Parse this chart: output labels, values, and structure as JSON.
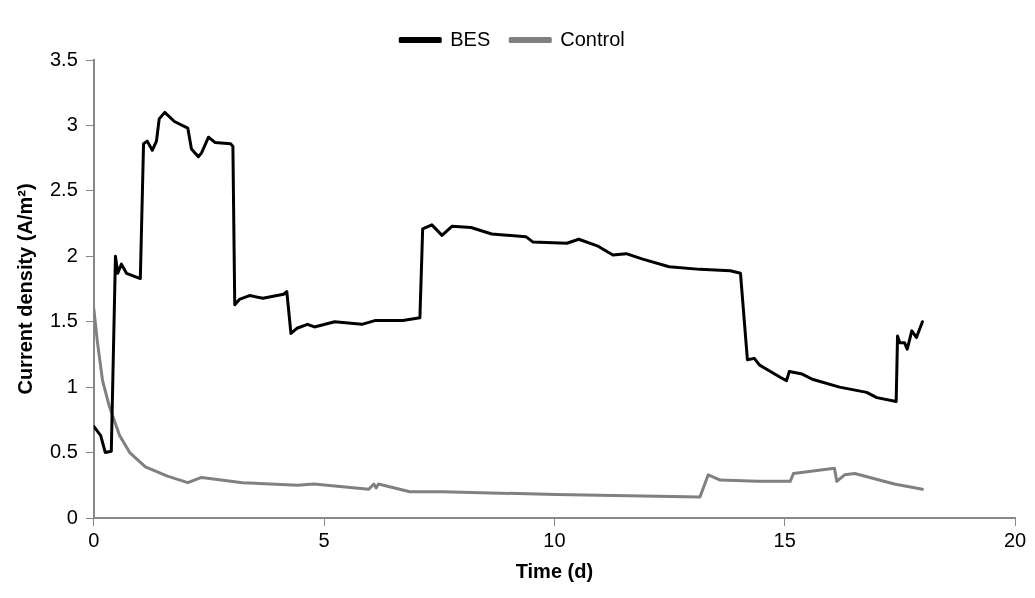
{
  "chart_data": {
    "type": "line",
    "xlabel": "Time (d)",
    "ylabel": "Current density (A/m²)",
    "xlim": [
      0,
      20
    ],
    "xticks": [
      0,
      5,
      10,
      15,
      20
    ],
    "ylim": [
      0,
      3.5
    ],
    "yticks": [
      0,
      0.5,
      1,
      1.5,
      2,
      2.5,
      3,
      3.5
    ],
    "grid": false,
    "legend": "top",
    "marker": "none",
    "line_style": "solid",
    "series": [
      {
        "name": "BES",
        "color": "#000000",
        "x": [
          0,
          0.15,
          0.25,
          0.38,
          0.47,
          0.52,
          0.6,
          0.71,
          1.01,
          1.08,
          1.16,
          1.27,
          1.36,
          1.42,
          1.54,
          1.75,
          2.04,
          2.12,
          2.27,
          2.34,
          2.49,
          2.63,
          2.97,
          3.02,
          3.06,
          3.16,
          3.38,
          3.67,
          4.12,
          4.19,
          4.28,
          4.41,
          4.64,
          4.79,
          5.23,
          5.82,
          6.12,
          6.71,
          7.08,
          7.14,
          7.34,
          7.56,
          7.78,
          8.19,
          8.64,
          9.38,
          9.53,
          10.27,
          10.53,
          10.93,
          11.27,
          11.56,
          11.9,
          12.49,
          13.16,
          13.82,
          14.04,
          14.19,
          14.34,
          14.45,
          14.93,
          15.04,
          15.1,
          15.38,
          15.6,
          16.19,
          16.78,
          17.0,
          17.42,
          17.45,
          17.5,
          17.6,
          17.66,
          17.76,
          17.86,
          17.99
        ],
        "values": [
          0.7,
          0.63,
          0.5,
          0.51,
          2.0,
          1.87,
          1.94,
          1.87,
          1.83,
          2.86,
          2.88,
          2.81,
          2.88,
          3.05,
          3.1,
          3.03,
          2.98,
          2.82,
          2.76,
          2.79,
          2.91,
          2.87,
          2.86,
          2.84,
          1.63,
          1.67,
          1.7,
          1.68,
          1.71,
          1.73,
          1.41,
          1.45,
          1.48,
          1.46,
          1.5,
          1.48,
          1.51,
          1.51,
          1.53,
          2.21,
          2.24,
          2.16,
          2.23,
          2.22,
          2.17,
          2.15,
          2.11,
          2.1,
          2.13,
          2.08,
          2.01,
          2.02,
          1.98,
          1.92,
          1.9,
          1.89,
          1.87,
          1.21,
          1.22,
          1.17,
          1.07,
          1.05,
          1.12,
          1.1,
          1.06,
          1.0,
          0.96,
          0.92,
          0.89,
          1.39,
          1.34,
          1.34,
          1.29,
          1.43,
          1.38,
          1.5
        ]
      },
      {
        "name": "Control",
        "color": "#808080",
        "x": [
          0,
          0.08,
          0.19,
          0.34,
          0.56,
          0.78,
          1.12,
          1.6,
          2.04,
          2.34,
          3.23,
          4.42,
          4.78,
          5.97,
          6.08,
          6.13,
          6.18,
          6.86,
          7.56,
          10.04,
          13.16,
          13.34,
          13.6,
          14.41,
          15.12,
          15.19,
          16.08,
          16.13,
          16.3,
          16.52,
          17.38,
          17.99
        ],
        "values": [
          1.6,
          1.34,
          1.05,
          0.85,
          0.63,
          0.5,
          0.39,
          0.32,
          0.27,
          0.31,
          0.27,
          0.25,
          0.26,
          0.22,
          0.26,
          0.23,
          0.26,
          0.2,
          0.2,
          0.18,
          0.16,
          0.33,
          0.29,
          0.28,
          0.28,
          0.34,
          0.38,
          0.28,
          0.33,
          0.34,
          0.26,
          0.22
        ]
      }
    ]
  }
}
